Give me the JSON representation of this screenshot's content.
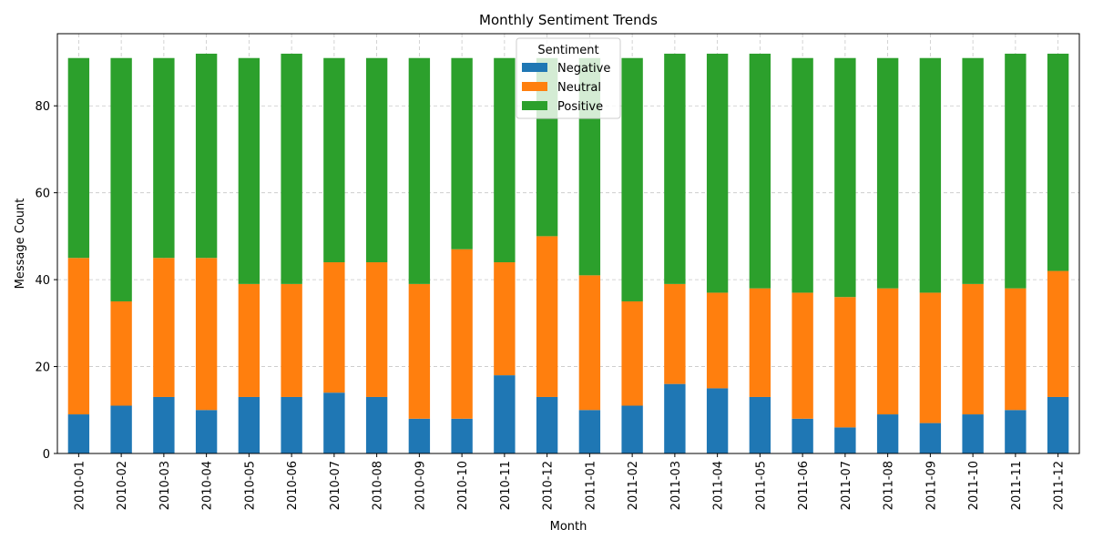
{
  "chart_data": {
    "type": "bar",
    "stacked": true,
    "title": "Monthly Sentiment Trends",
    "xlabel": "Month",
    "ylabel": "Message Count",
    "categories": [
      "2010-01",
      "2010-02",
      "2010-03",
      "2010-04",
      "2010-05",
      "2010-06",
      "2010-07",
      "2010-08",
      "2010-09",
      "2010-10",
      "2010-11",
      "2010-12",
      "2011-01",
      "2011-02",
      "2011-03",
      "2011-04",
      "2011-05",
      "2011-06",
      "2011-07",
      "2011-08",
      "2011-09",
      "2011-10",
      "2011-11",
      "2011-12"
    ],
    "series": [
      {
        "name": "Negative",
        "color": "#1f77b4",
        "values": [
          9,
          11,
          13,
          10,
          13,
          13,
          14,
          13,
          8,
          8,
          18,
          13,
          10,
          11,
          16,
          15,
          13,
          8,
          6,
          9,
          7,
          9,
          10,
          13
        ]
      },
      {
        "name": "Neutral",
        "color": "#ff7f0e",
        "values": [
          36,
          24,
          32,
          35,
          26,
          26,
          30,
          31,
          31,
          39,
          26,
          37,
          31,
          24,
          23,
          22,
          25,
          29,
          30,
          29,
          30,
          30,
          28,
          29
        ]
      },
      {
        "name": "Positive",
        "color": "#2ca02c",
        "values": [
          46,
          56,
          46,
          47,
          52,
          53,
          47,
          47,
          52,
          44,
          47,
          41,
          50,
          56,
          53,
          55,
          54,
          54,
          55,
          53,
          54,
          52,
          54,
          50
        ]
      }
    ],
    "ylim": [
      0,
      96.6
    ],
    "yticks": [
      0,
      20,
      40,
      60,
      80
    ],
    "grid": true,
    "legend": {
      "title": "Sentiment",
      "placement": "top-center"
    }
  }
}
